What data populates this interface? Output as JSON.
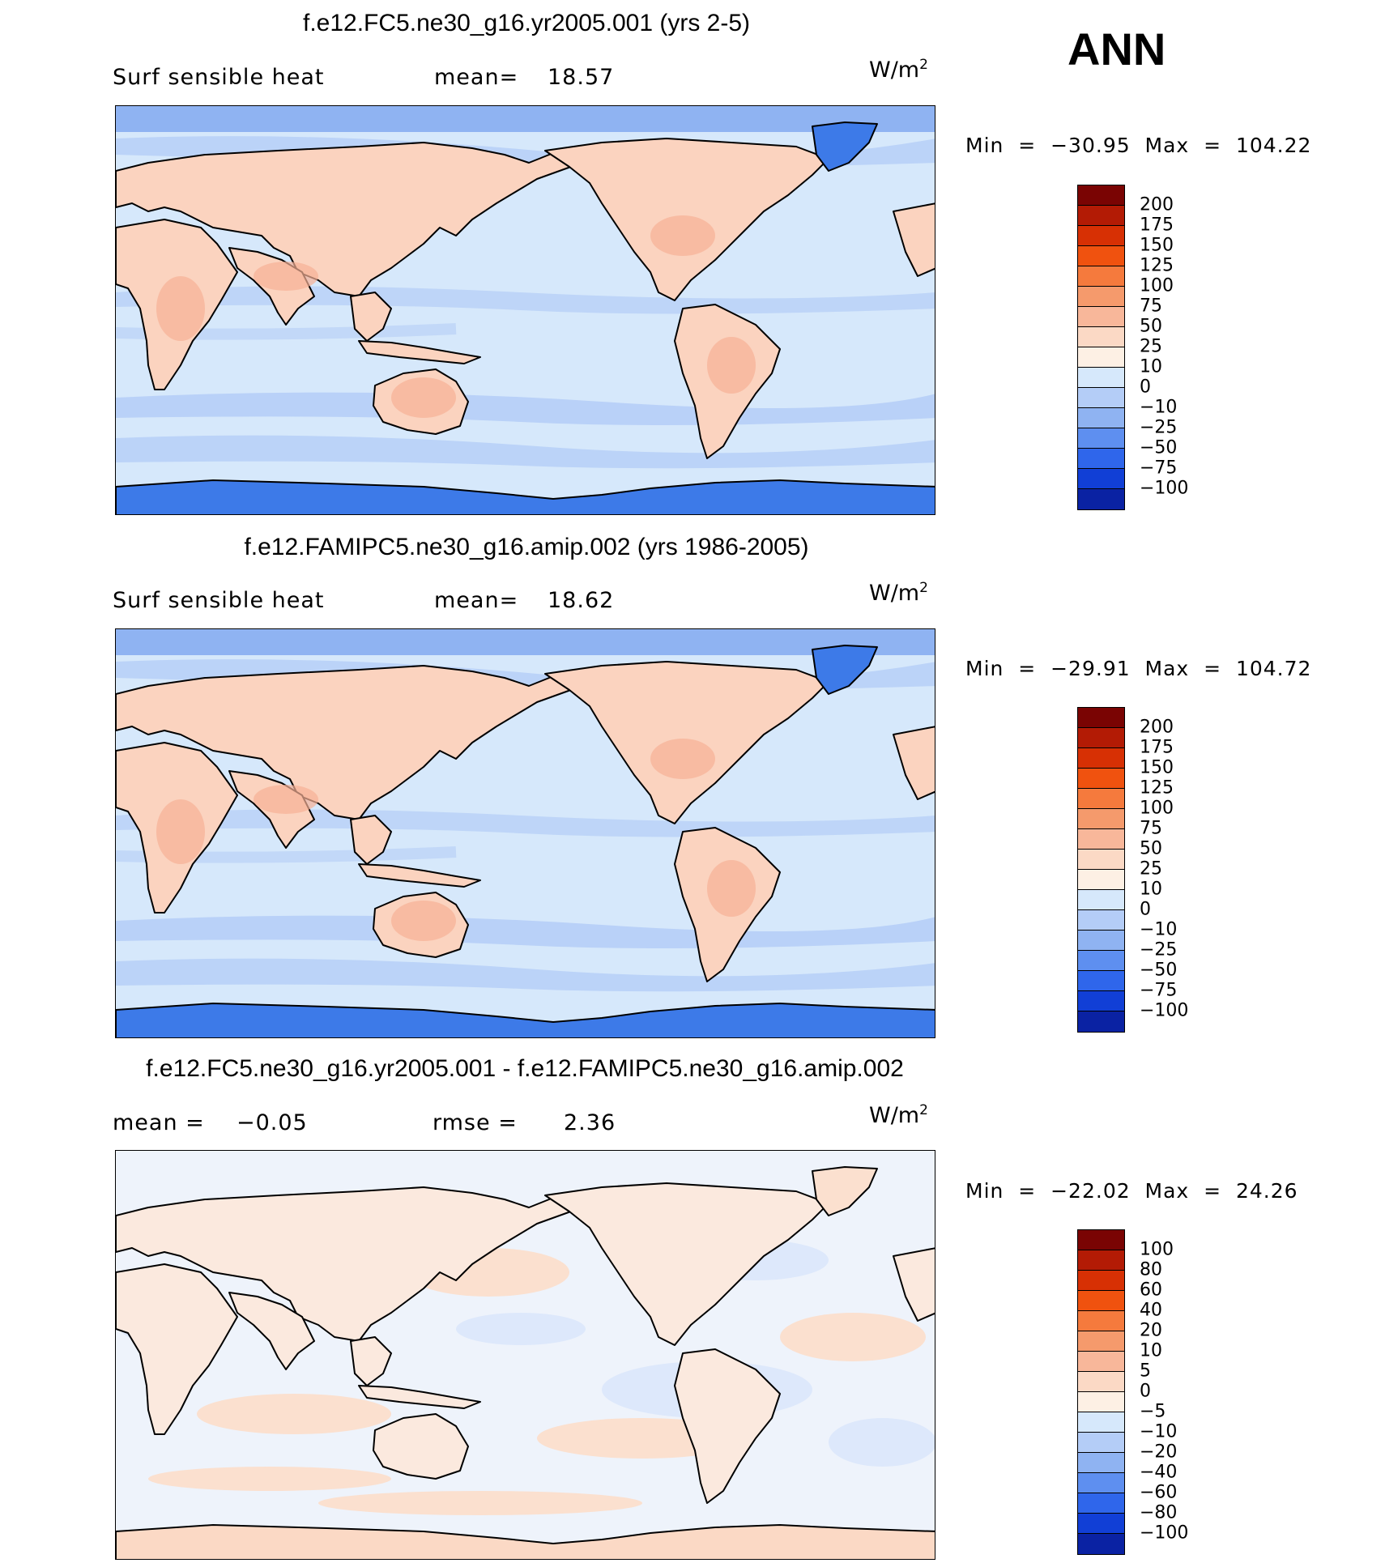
{
  "season": "ANN",
  "colors": {
    "ocean_light": "#d6e8fb",
    "ocean_mid": "#b4cdf7",
    "ocean_deep": "#8fb3f2",
    "ice_blue": "#3d7ae8",
    "land_warm": "#fbd3bf",
    "land_hot": "#f6b095",
    "coast": "#000000"
  },
  "panels": [
    {
      "title": "f.e12.FC5.ne30_g16.yr2005.001 (yrs 2-5)",
      "left_label": "Surf  sensible  heat",
      "stat_label": "mean=",
      "stat_value": "18.57",
      "stat2_label": "",
      "stat2_value": "",
      "units": "W/m",
      "units_sup": "2",
      "min_label": "Min",
      "min_value": "−30.95",
      "max_label": "Max",
      "max_value": "104.22",
      "map_kind": "field",
      "colorbar": {
        "labels": [
          "200",
          "175",
          "150",
          "125",
          "100",
          "75",
          "50",
          "25",
          "10",
          "0",
          "−10",
          "−25",
          "−50",
          "−75",
          "−100"
        ],
        "colors": [
          "#7a0403",
          "#b31b05",
          "#d73004",
          "#f0520f",
          "#f57a3d",
          "#f59a6c",
          "#f8b79a",
          "#fbd9c5",
          "#fdf0e4",
          "#d6e8fb",
          "#b4cdf7",
          "#8fb3f2",
          "#5e8ff0",
          "#2f66eb",
          "#113fd6",
          "#0a22a3"
        ]
      }
    },
    {
      "title": "f.e12.FAMIPC5.ne30_g16.amip.002 (yrs 1986-2005)",
      "left_label": "Surf  sensible  heat",
      "stat_label": "mean=",
      "stat_value": "18.62",
      "stat2_label": "",
      "stat2_value": "",
      "units": "W/m",
      "units_sup": "2",
      "min_label": "Min",
      "min_value": "−29.91",
      "max_label": "Max",
      "max_value": "104.72",
      "map_kind": "field",
      "colorbar": {
        "labels": [
          "200",
          "175",
          "150",
          "125",
          "100",
          "75",
          "50",
          "25",
          "10",
          "0",
          "−10",
          "−25",
          "−50",
          "−75",
          "−100"
        ],
        "colors": [
          "#7a0403",
          "#b31b05",
          "#d73004",
          "#f0520f",
          "#f57a3d",
          "#f59a6c",
          "#f8b79a",
          "#fbd9c5",
          "#fdf0e4",
          "#d6e8fb",
          "#b4cdf7",
          "#8fb3f2",
          "#5e8ff0",
          "#2f66eb",
          "#113fd6",
          "#0a22a3"
        ]
      }
    },
    {
      "title": "f.e12.FC5.ne30_g16.yr2005.001 - f.e12.FAMIPC5.ne30_g16.amip.002",
      "left_label": "mean  =",
      "stat_label": "",
      "stat_value": "−0.05",
      "stat2_label": "rmse  =",
      "stat2_value": "2.36",
      "units": "W/m",
      "units_sup": "2",
      "min_label": "Min",
      "min_value": "−22.02",
      "max_label": "Max",
      "max_value": "24.26",
      "map_kind": "diff",
      "colorbar": {
        "labels": [
          "100",
          "80",
          "60",
          "40",
          "20",
          "10",
          "5",
          "0",
          "−5",
          "−10",
          "−20",
          "−40",
          "−60",
          "−80",
          "−100"
        ],
        "colors": [
          "#7a0403",
          "#b31b05",
          "#d73004",
          "#f0520f",
          "#f57a3d",
          "#f59a6c",
          "#f8b79a",
          "#fbd9c5",
          "#fdf0e4",
          "#d6e8fb",
          "#b4cdf7",
          "#8fb3f2",
          "#5e8ff0",
          "#2f66eb",
          "#113fd6",
          "#0a22a3"
        ]
      }
    }
  ]
}
